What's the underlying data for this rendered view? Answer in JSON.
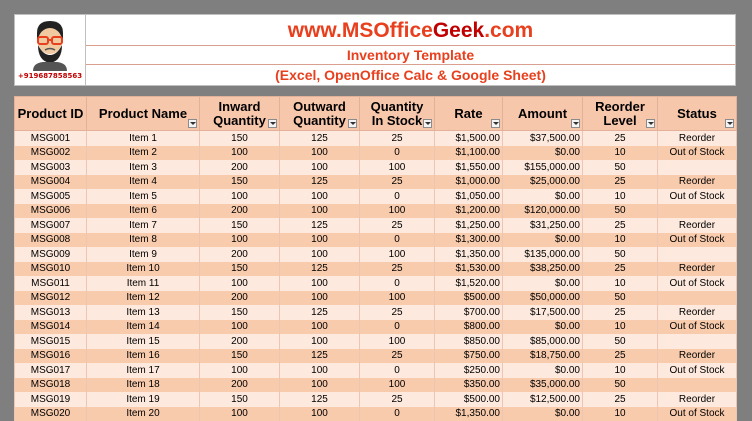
{
  "header": {
    "site_prefix": "www.MSOffice",
    "site_highlight": "Geek",
    "site_suffix": ".com",
    "title": "Inventory Template",
    "subtitle": "(Excel, OpenOffice Calc & Google Sheet)",
    "phone": "+919687858563",
    "logo_icon": "avatar-icon"
  },
  "colors": {
    "accent": "#e8401e",
    "header_fill": "#f7c7ac",
    "row_light": "#fde9dd",
    "row_dark": "#f8cbad"
  },
  "table": {
    "columns": [
      {
        "label": "Product ID",
        "filter": false
      },
      {
        "label": "Product Name",
        "filter": true
      },
      {
        "label": "Inward\nQuantity",
        "filter": true
      },
      {
        "label": "Outward\nQuantity",
        "filter": true
      },
      {
        "label": "Quantity\nIn Stock",
        "filter": true
      },
      {
        "label": "Rate",
        "filter": true
      },
      {
        "label": "Amount",
        "filter": true
      },
      {
        "label": "Reorder\nLevel",
        "filter": true
      },
      {
        "label": "Status",
        "filter": true
      }
    ],
    "rows": [
      [
        "MSG001",
        "Item 1",
        "150",
        "125",
        "25",
        "$1,500.00",
        "$37,500.00",
        "25",
        "Reorder"
      ],
      [
        "MSG002",
        "Item 2",
        "100",
        "100",
        "0",
        "$1,100.00",
        "$0.00",
        "10",
        "Out of Stock"
      ],
      [
        "MSG003",
        "Item 3",
        "200",
        "100",
        "100",
        "$1,550.00",
        "$155,000.00",
        "50",
        ""
      ],
      [
        "MSG004",
        "Item 4",
        "150",
        "125",
        "25",
        "$1,000.00",
        "$25,000.00",
        "25",
        "Reorder"
      ],
      [
        "MSG005",
        "Item 5",
        "100",
        "100",
        "0",
        "$1,050.00",
        "$0.00",
        "10",
        "Out of Stock"
      ],
      [
        "MSG006",
        "Item 6",
        "200",
        "100",
        "100",
        "$1,200.00",
        "$120,000.00",
        "50",
        ""
      ],
      [
        "MSG007",
        "Item 7",
        "150",
        "125",
        "25",
        "$1,250.00",
        "$31,250.00",
        "25",
        "Reorder"
      ],
      [
        "MSG008",
        "Item 8",
        "100",
        "100",
        "0",
        "$1,300.00",
        "$0.00",
        "10",
        "Out of Stock"
      ],
      [
        "MSG009",
        "Item 9",
        "200",
        "100",
        "100",
        "$1,350.00",
        "$135,000.00",
        "50",
        ""
      ],
      [
        "MSG010",
        "Item 10",
        "150",
        "125",
        "25",
        "$1,530.00",
        "$38,250.00",
        "25",
        "Reorder"
      ],
      [
        "MSG011",
        "Item 11",
        "100",
        "100",
        "0",
        "$1,520.00",
        "$0.00",
        "10",
        "Out of Stock"
      ],
      [
        "MSG012",
        "Item 12",
        "200",
        "100",
        "100",
        "$500.00",
        "$50,000.00",
        "50",
        ""
      ],
      [
        "MSG013",
        "Item 13",
        "150",
        "125",
        "25",
        "$700.00",
        "$17,500.00",
        "25",
        "Reorder"
      ],
      [
        "MSG014",
        "Item 14",
        "100",
        "100",
        "0",
        "$800.00",
        "$0.00",
        "10",
        "Out of Stock"
      ],
      [
        "MSG015",
        "Item 15",
        "200",
        "100",
        "100",
        "$850.00",
        "$85,000.00",
        "50",
        ""
      ],
      [
        "MSG016",
        "Item 16",
        "150",
        "125",
        "25",
        "$750.00",
        "$18,750.00",
        "25",
        "Reorder"
      ],
      [
        "MSG017",
        "Item 17",
        "100",
        "100",
        "0",
        "$250.00",
        "$0.00",
        "10",
        "Out of Stock"
      ],
      [
        "MSG018",
        "Item 18",
        "200",
        "100",
        "100",
        "$350.00",
        "$35,000.00",
        "50",
        ""
      ],
      [
        "MSG019",
        "Item 19",
        "150",
        "125",
        "25",
        "$500.00",
        "$12,500.00",
        "25",
        "Reorder"
      ],
      [
        "MSG020",
        "Item 20",
        "100",
        "100",
        "0",
        "$1,350.00",
        "$0.00",
        "10",
        "Out of Stock"
      ]
    ]
  }
}
